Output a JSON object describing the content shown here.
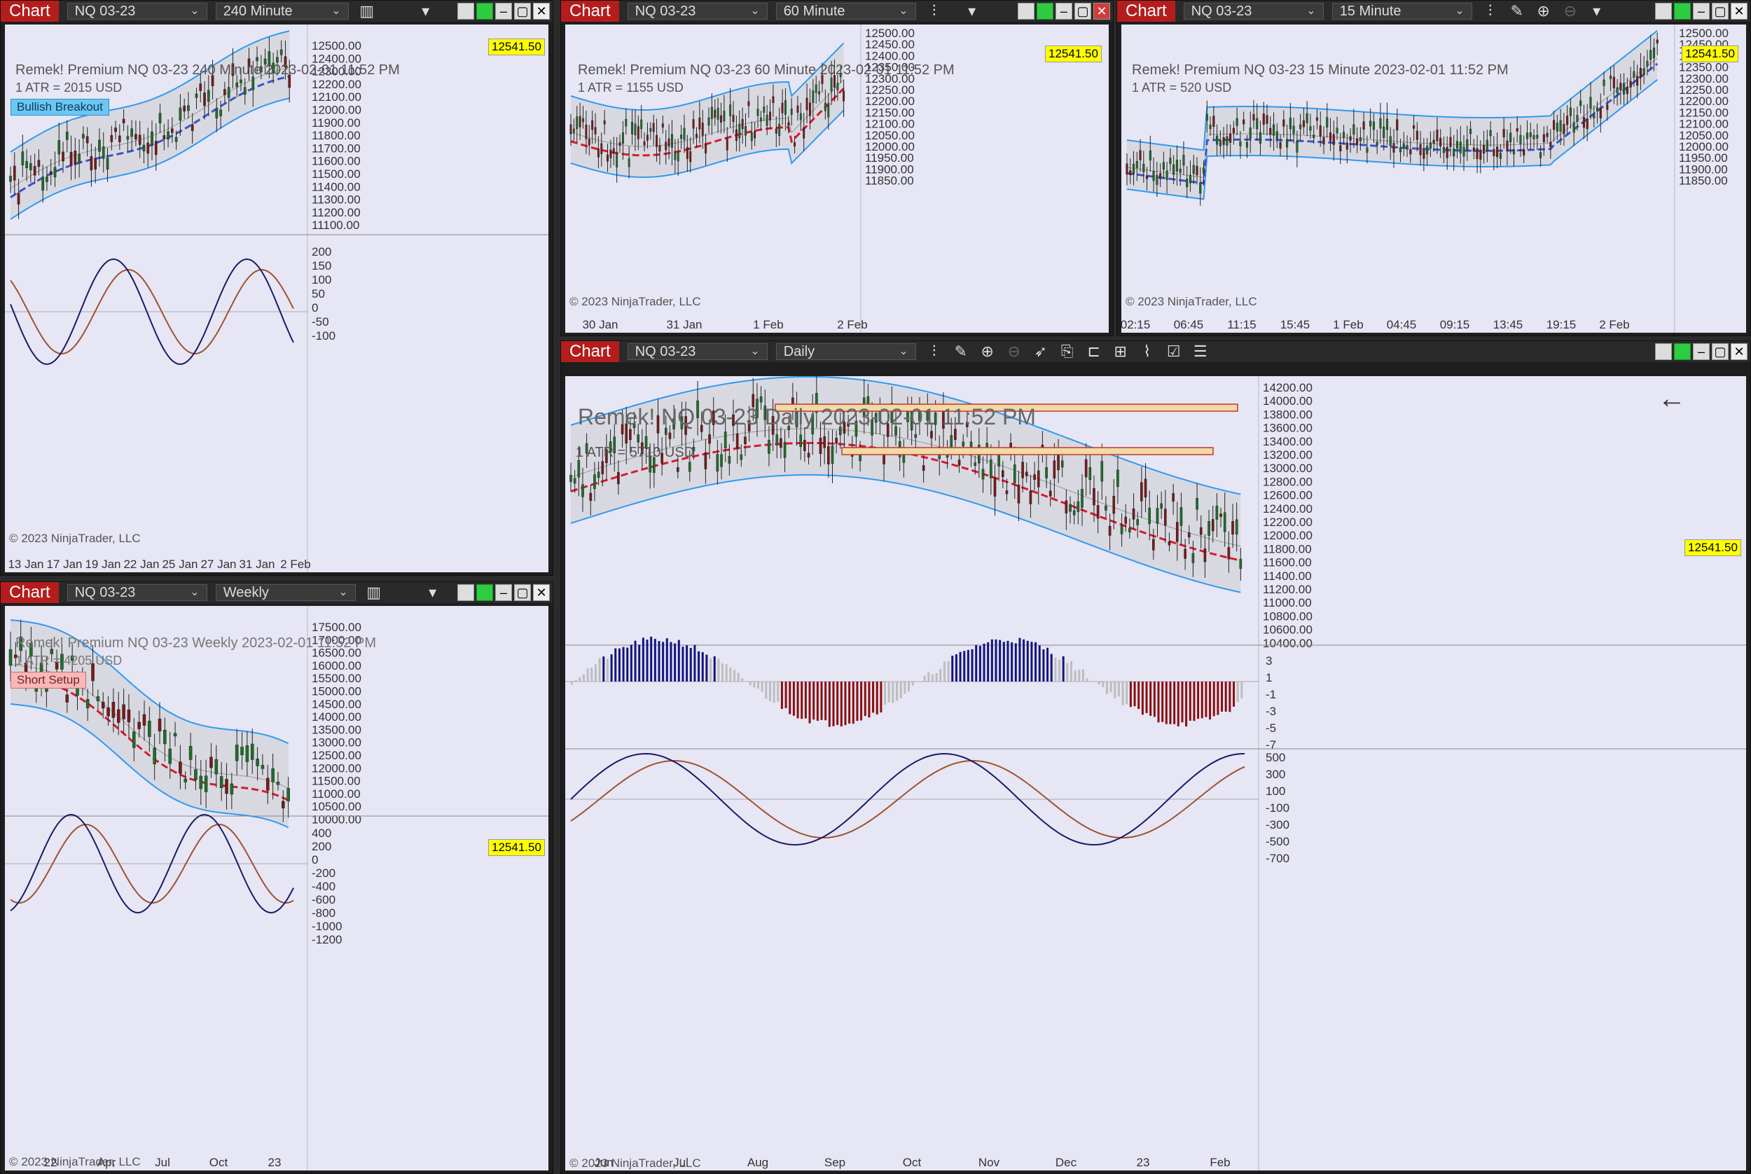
{
  "common": {
    "chart_tab": "Chart",
    "instrument": "NQ 03-23",
    "copyright": "© 2023 NinjaTrader, LLC",
    "last_price": "12541.50",
    "colors": {
      "bg": "#e6e6f5",
      "band": "#d6d6de",
      "band_line": "#2e9bf0",
      "ma_blue": "#3a55c8",
      "ma_red": "#d8192e",
      "ma_yellow": "#e6e600",
      "up_candle": "#1f6e2a",
      "down_candle": "#7a1a1a",
      "hist_red": "#8b0e0e",
      "hist_blue": "#14147e",
      "hist_gray": "#bdbdbd",
      "osc_dark": "#1a1a66",
      "osc_brown": "#a0522d"
    }
  },
  "win240": {
    "timeframe": "240 Minute",
    "info": "Remek!  Premium  NQ 03-23  240 Minute  2023-02-01 11:52 PM",
    "atr": "1 ATR = 2015 USD",
    "badge": "Bullish Breakout",
    "yticks": [
      "12500.00",
      "12400.00",
      "12300.00",
      "12200.00",
      "12100.00",
      "12000.00",
      "11900.00",
      "11800.00",
      "11700.00",
      "11600.00",
      "11500.00",
      "11400.00",
      "11300.00",
      "11200.00",
      "11100.00"
    ],
    "osc_ticks": [
      "200",
      "150",
      "100",
      "50",
      "0",
      "-50",
      "-100"
    ],
    "xticks": [
      "13 Jan",
      "17 Jan",
      "19 Jan",
      "22 Jan",
      "25 Jan",
      "27 Jan",
      "31 Jan",
      "2 Feb"
    ]
  },
  "win60": {
    "timeframe": "60 Minute",
    "info": "Remek!  Premium  NQ 03-23  60 Minute  2023-02-01 11:52 PM",
    "atr": "1 ATR = 1155 USD",
    "yticks": [
      "12500.00",
      "12450.00",
      "12400.00",
      "12350.00",
      "12300.00",
      "12250.00",
      "12200.00",
      "12150.00",
      "12100.00",
      "12050.00",
      "12000.00",
      "11950.00",
      "11900.00",
      "11850.00"
    ],
    "xticks": [
      "30 Jan",
      "31 Jan",
      "1 Feb",
      "2 Feb"
    ]
  },
  "win15": {
    "timeframe": "15 Minute",
    "info": "Remek!  Premium  NQ 03-23  15 Minute  2023-02-01 11:52 PM",
    "atr": "1 ATR = 520 USD",
    "yticks": [
      "12500.00",
      "12450.00",
      "12400.00",
      "12350.00",
      "12300.00",
      "12250.00",
      "12200.00",
      "12150.00",
      "12100.00",
      "12050.00",
      "12000.00",
      "11950.00",
      "11900.00",
      "11850.00"
    ],
    "xticks": [
      "02:15",
      "06:45",
      "11:15",
      "15:45",
      "1 Feb",
      "04:45",
      "09:15",
      "13:45",
      "19:15",
      "2 Feb"
    ]
  },
  "winWeekly": {
    "timeframe": "Weekly",
    "info": "Remek!  Premium  NQ 03-23  Weekly  2023-02-01 11:52 PM",
    "atr": "1 ATR = 4205 USD",
    "badge": "Short Setup",
    "yticks": [
      "17500.00",
      "17000.00",
      "16500.00",
      "16000.00",
      "15500.00",
      "15000.00",
      "14500.00",
      "14000.00",
      "13500.00",
      "13000.00",
      "12500.00",
      "12000.00",
      "11500.00",
      "11000.00",
      "10500.00",
      "10000.00"
    ],
    "osc_ticks": [
      "400",
      "200",
      "0",
      "-200",
      "-400",
      "-600",
      "-800",
      "-1000",
      "-1200"
    ],
    "xticks": [
      "22",
      "Apr",
      "Jul",
      "Oct",
      "23"
    ]
  },
  "winDaily": {
    "timeframe": "Daily",
    "info": "Remek!  NQ 03-23  Daily  2023-02-01 11:52 PM",
    "atr": "1 ATR = 5710 USD",
    "yticks": [
      "14200.00",
      "14000.00",
      "13800.00",
      "13600.00",
      "13400.00",
      "13200.00",
      "13000.00",
      "12800.00",
      "12600.00",
      "12400.00",
      "12200.00",
      "12000.00",
      "11800.00",
      "11600.00",
      "11400.00",
      "11200.00",
      "11000.00",
      "10800.00",
      "10600.00",
      "10400.00"
    ],
    "hist_ticks": [
      "3",
      "1",
      "-1",
      "-3",
      "-5",
      "-7"
    ],
    "osc_ticks": [
      "500",
      "300",
      "100",
      "-100",
      "-300",
      "-500",
      "-700"
    ],
    "xticks": [
      "Jun",
      "Jul",
      "Aug",
      "Sep",
      "Oct",
      "Nov",
      "Dec",
      "23",
      "Feb"
    ]
  }
}
